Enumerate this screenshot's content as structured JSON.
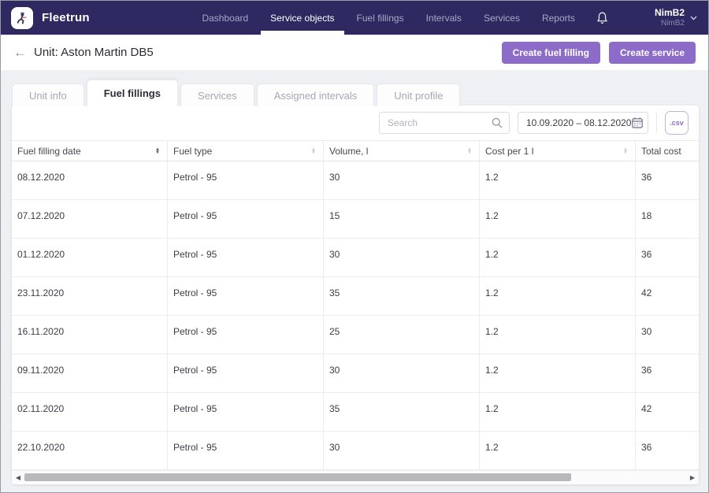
{
  "colors": {
    "navbar_bg": "#2e2960",
    "accent_purple": "#8d6cc9",
    "page_bg": "#eef0f4",
    "text_dark": "#2d2d38",
    "text_gray": "#a7a7b2",
    "border": "#eaeaef"
  },
  "nav": {
    "brand": "Fleetrun",
    "items": [
      {
        "label": "Dashboard",
        "active": false
      },
      {
        "label": "Service objects",
        "active": true
      },
      {
        "label": "Fuel fillings",
        "active": false
      },
      {
        "label": "Intervals",
        "active": false
      },
      {
        "label": "Services",
        "active": false
      },
      {
        "label": "Reports",
        "active": false
      }
    ],
    "user": {
      "name": "NimB2",
      "account": "NimB2"
    }
  },
  "header": {
    "title": "Unit: Aston Martin DB5",
    "buttons": [
      {
        "label": "Create fuel filling"
      },
      {
        "label": "Create service"
      }
    ]
  },
  "tabs": [
    {
      "label": "Unit info",
      "active": false
    },
    {
      "label": "Fuel fillings",
      "active": true
    },
    {
      "label": "Services",
      "active": false
    },
    {
      "label": "Assigned intervals",
      "active": false
    },
    {
      "label": "Unit profile",
      "active": false
    }
  ],
  "toolbar": {
    "search_placeholder": "Search",
    "date_range": "10.09.2020 – 08.12.2020",
    "export_label": ".csv"
  },
  "table": {
    "columns": [
      {
        "label": "Fuel filling date",
        "sort": "active"
      },
      {
        "label": "Fuel type",
        "sort": "inactive"
      },
      {
        "label": "Volume, l",
        "sort": "inactive"
      },
      {
        "label": "Cost per 1 l",
        "sort": "inactive"
      },
      {
        "label": "Total cost",
        "sort": "none"
      }
    ],
    "rows": [
      [
        "08.12.2020",
        "Petrol - 95",
        "30",
        "1.2",
        "36"
      ],
      [
        "07.12.2020",
        "Petrol - 95",
        "15",
        "1.2",
        "18"
      ],
      [
        "01.12.2020",
        "Petrol - 95",
        "30",
        "1.2",
        "36"
      ],
      [
        "23.11.2020",
        "Petrol - 95",
        "35",
        "1.2",
        "42"
      ],
      [
        "16.11.2020",
        "Petrol - 95",
        "25",
        "1.2",
        "30"
      ],
      [
        "09.11.2020",
        "Petrol - 95",
        "30",
        "1.2",
        "36"
      ],
      [
        "02.11.2020",
        "Petrol - 95",
        "35",
        "1.2",
        "42"
      ],
      [
        "22.10.2020",
        "Petrol - 95",
        "30",
        "1.2",
        "36"
      ]
    ]
  }
}
